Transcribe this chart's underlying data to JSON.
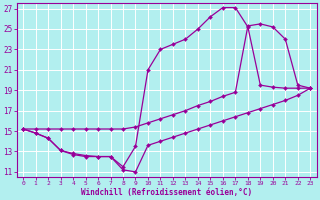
{
  "xlabel": "Windchill (Refroidissement éolien,°C)",
  "bg_color": "#b2efef",
  "grid_color": "#a0d8d8",
  "line_color": "#990099",
  "marker_color": "#990099",
  "xlim": [
    -0.5,
    23.5
  ],
  "ylim": [
    10.5,
    27.5
  ],
  "xticks": [
    0,
    1,
    2,
    3,
    4,
    5,
    6,
    7,
    8,
    9,
    10,
    11,
    12,
    13,
    14,
    15,
    16,
    17,
    18,
    19,
    20,
    21,
    22,
    23
  ],
  "yticks": [
    11,
    13,
    15,
    17,
    19,
    21,
    23,
    25,
    27
  ],
  "line1_x": [
    0,
    1,
    2,
    3,
    4,
    5,
    6,
    7,
    8,
    9,
    10,
    11,
    12,
    13,
    14,
    15,
    16,
    17,
    18,
    19,
    20,
    21,
    22,
    23
  ],
  "line1_y": [
    15.2,
    14.8,
    14.3,
    13.1,
    12.7,
    12.5,
    12.5,
    12.5,
    11.2,
    11.0,
    13.6,
    14.0,
    14.4,
    14.8,
    15.2,
    15.6,
    16.0,
    16.4,
    16.8,
    17.2,
    17.6,
    18.0,
    18.5,
    19.2
  ],
  "line2_x": [
    0,
    1,
    2,
    3,
    4,
    5,
    6,
    7,
    8,
    9,
    10,
    11,
    12,
    13,
    14,
    15,
    16,
    17,
    18,
    19,
    20,
    21,
    22,
    23
  ],
  "line2_y": [
    15.2,
    14.8,
    14.3,
    13.1,
    12.8,
    12.6,
    12.5,
    12.5,
    11.5,
    13.5,
    21.0,
    23.0,
    23.5,
    24.0,
    25.0,
    26.2,
    27.1,
    27.1,
    25.2,
    19.5,
    19.3,
    19.2,
    19.2,
    19.2
  ],
  "line3_x": [
    0,
    1,
    2,
    3,
    4,
    5,
    6,
    7,
    8,
    9,
    10,
    11,
    12,
    13,
    14,
    15,
    16,
    17,
    18,
    19,
    20,
    21,
    22,
    23
  ],
  "line3_y": [
    15.2,
    15.2,
    15.2,
    15.2,
    15.2,
    15.2,
    15.2,
    15.2,
    15.2,
    15.4,
    15.8,
    16.2,
    16.6,
    17.0,
    17.5,
    17.9,
    18.4,
    18.8,
    25.3,
    25.5,
    25.2,
    24.0,
    19.5,
    19.2
  ]
}
